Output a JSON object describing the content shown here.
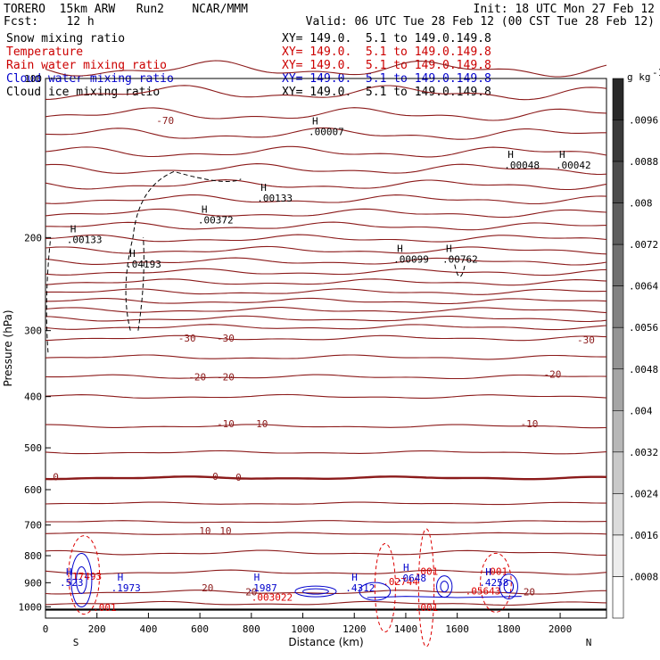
{
  "header": {
    "line1_left": "TORERO  15km ARW   Run2    NCAR/MMM",
    "line1_right": "Init: 18 UTC Mon 27 Feb 12",
    "line2_left": "Fcst:    12 h",
    "line2_right": "Valid: 06 UTC Tue 28 Feb 12 (00 CST Tue 28 Feb 12)"
  },
  "fields": [
    {
      "name": "Snow mixing ratio",
      "xy": "XY= 149.0.  5.1 to 149.0.149.8",
      "color": "#000000"
    },
    {
      "name": "Temperature",
      "xy": "XY= 149.0.  5.1 to 149.0.149.8",
      "color": "#cc0000"
    },
    {
      "name": "Rain water mixing ratio",
      "xy": "XY= 149.0.  5.1 to 149.0.149.8",
      "color": "#cc0000"
    },
    {
      "name": "Cloud water mixing ratio",
      "xy": "XY= 149.0.  5.1 to 149.0.149.8",
      "color": "#0000cc"
    },
    {
      "name": "Cloud ice mixing ratio",
      "xy": "XY= 149.0.  5.1 to 149.0.149.8",
      "color": "#000000"
    }
  ],
  "chart_data": {
    "type": "cross-section",
    "xlabel": "Distance (km)",
    "ylabel": "Pressure (hPa)",
    "xlim": [
      0,
      2180
    ],
    "ylim": [
      1050,
      100
    ],
    "x_ticks": [
      "0",
      "200",
      "400",
      "600",
      "800",
      "1000",
      "1200",
      "1400",
      "1600",
      "1800",
      "2000"
    ],
    "y_ticks": [
      "100",
      "200",
      "300",
      "400",
      "500",
      "600",
      "700",
      "800",
      "900",
      "1000"
    ],
    "x_end_labels": {
      "left": "S",
      "right": "N"
    },
    "colorbar": {
      "unit": "g kg",
      "unit_exp": "-1",
      "labels": [
        ".0096",
        ".0088",
        ".008",
        ".0072",
        ".0064",
        ".0056",
        ".0048",
        ".004",
        ".0032",
        ".0024",
        ".0016",
        ".0008"
      ]
    },
    "isotherms": [
      {
        "label": "-70",
        "p": 120
      },
      {
        "label": "-30",
        "p": 310
      },
      {
        "label": "-20",
        "p": 367
      },
      {
        "label": "-10",
        "p": 455
      },
      {
        "label": "0",
        "p": 570
      },
      {
        "label": "10",
        "p": 727
      },
      {
        "label": "20",
        "p": 938
      }
    ],
    "temperature_label_positions": [
      {
        "label": "-70",
        "x": 465,
        "p": 120
      },
      {
        "label": "-30",
        "x": 550,
        "p": 310
      },
      {
        "label": "-30",
        "x": 700,
        "p": 310
      },
      {
        "label": "-30",
        "x": 2100,
        "p": 312
      },
      {
        "label": "-20",
        "x": 590,
        "p": 367
      },
      {
        "label": "-20",
        "x": 700,
        "p": 367
      },
      {
        "label": "-20",
        "x": 1970,
        "p": 363
      },
      {
        "label": "-10",
        "x": 700,
        "p": 450
      },
      {
        "label": "-10",
        "x": 830,
        "p": 450
      },
      {
        "label": "-10",
        "x": 1880,
        "p": 450
      },
      {
        "label": "0",
        "x": 40,
        "p": 567
      },
      {
        "label": "0",
        "x": 660,
        "p": 566
      },
      {
        "label": "0",
        "x": 750,
        "p": 568
      },
      {
        "label": "10",
        "x": 620,
        "p": 718
      },
      {
        "label": "10",
        "x": 700,
        "p": 718
      },
      {
        "label": "20",
        "x": 630,
        "p": 920
      },
      {
        "label": "20",
        "x": 800,
        "p": 937
      },
      {
        "label": "20",
        "x": 1880,
        "p": 937
      }
    ],
    "snow_maxima": [
      {
        "label": ".00133",
        "x": 110,
        "p": 205
      },
      {
        "label": ".04193",
        "x": 340,
        "p": 228
      },
      {
        "label": ".00372",
        "x": 620,
        "p": 188
      },
      {
        "label": ".00133",
        "x": 850,
        "p": 171
      },
      {
        "label": ".00099",
        "x": 1380,
        "p": 223
      },
      {
        "label": ".00762",
        "x": 1570,
        "p": 223
      },
      {
        "label": ".00007",
        "x": 1050,
        "p": 128
      },
      {
        "label": ".00048",
        "x": 1810,
        "p": 148
      },
      {
        "label": ".00042",
        "x": 2010,
        "p": 148
      }
    ],
    "rain_maxima": [
      {
        "label": ".17493",
        "x": 150,
        "p": 875
      },
      {
        "label": ".001",
        "x": 230,
        "p": 1003
      },
      {
        "label": ".003022",
        "x": 880,
        "p": 959
      },
      {
        "label": ".02744",
        "x": 1380,
        "p": 896
      },
      {
        "label": ".001",
        "x": 1480,
        "p": 857
      },
      {
        "label": ".001",
        "x": 1750,
        "p": 857
      },
      {
        "label": ".05643",
        "x": 1700,
        "p": 933
      },
      {
        "label": ".001",
        "x": 1480,
        "p": 1003
      }
    ],
    "cloud_water_maxima": [
      {
        "label": ".523",
        "x": 90,
        "p": 913
      },
      {
        "label": ".1973",
        "x": 290,
        "p": 935
      },
      {
        "label": ".1987",
        "x": 820,
        "p": 935
      },
      {
        "label": ".4312",
        "x": 1200,
        "p": 935
      },
      {
        "label": ".0648",
        "x": 1400,
        "p": 896
      },
      {
        "label": ".4258",
        "x": 1720,
        "p": 913
      }
    ]
  }
}
